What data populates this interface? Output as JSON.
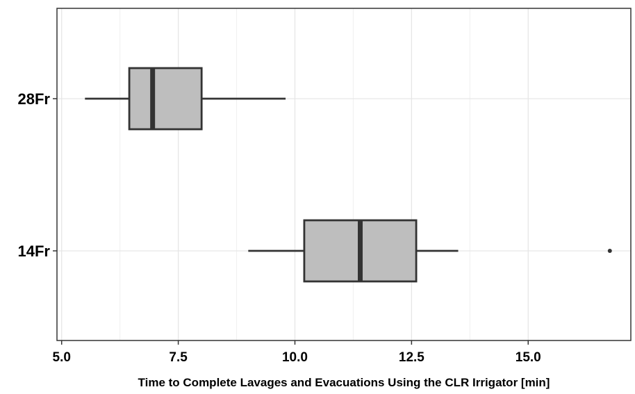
{
  "chart_data": {
    "type": "boxplot",
    "orientation": "horizontal",
    "title": "",
    "xlabel": "Time to Complete Lavages and Evacuations Using the CLR Irrigator [min]",
    "ylabel": "",
    "xlim": [
      4.9,
      17.2
    ],
    "x_ticks": [
      5.0,
      7.5,
      10.0,
      12.5,
      15.0
    ],
    "x_tick_labels": [
      "5.0",
      "7.5",
      "10.0",
      "12.5",
      "15.0"
    ],
    "categories": [
      "28Fr",
      "14Fr"
    ],
    "grid": true,
    "box_fill": "#bebebe",
    "line_color": "#333333",
    "boxes": [
      {
        "category": "28Fr",
        "whisker_low": 5.5,
        "q1": 6.45,
        "median": 6.95,
        "q3": 8.0,
        "whisker_high": 9.8,
        "outliers": []
      },
      {
        "category": "14Fr",
        "whisker_low": 9.0,
        "q1": 10.2,
        "median": 11.4,
        "q3": 12.6,
        "whisker_high": 13.5,
        "outliers": [
          16.75
        ]
      }
    ]
  }
}
